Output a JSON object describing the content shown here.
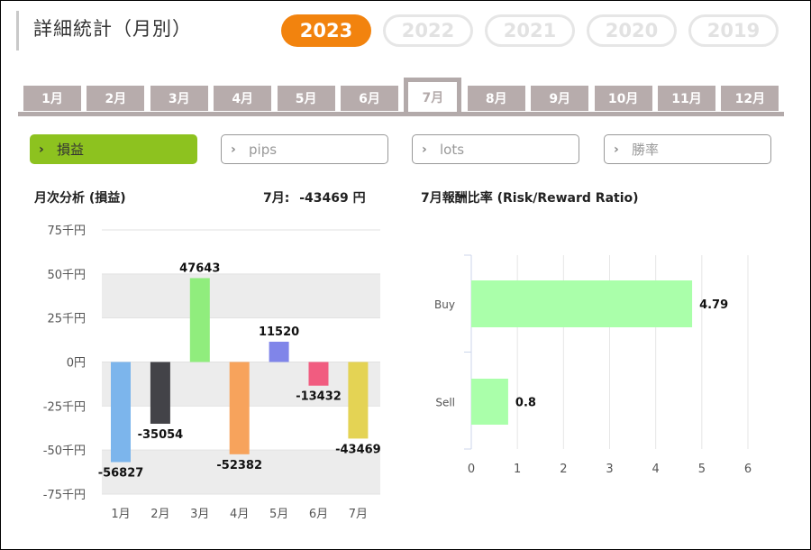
{
  "page": {
    "title": "詳細統計（月別）"
  },
  "years": [
    "2023",
    "2022",
    "2021",
    "2020",
    "2019"
  ],
  "selected_year": "2023",
  "months": [
    "1月",
    "2月",
    "3月",
    "4月",
    "5月",
    "6月",
    "7月",
    "8月",
    "9月",
    "10月",
    "11月",
    "12月"
  ],
  "selected_month": "7月",
  "metrics": [
    {
      "label": "損益",
      "active": true
    },
    {
      "label": "pips",
      "active": false
    },
    {
      "label": "lots",
      "active": false
    },
    {
      "label": "勝率",
      "active": false
    }
  ],
  "monthly": {
    "title": "月次分析 (損益)",
    "summary_label": "7月:",
    "summary_value": "-43469 円"
  },
  "rr": {
    "title": "7月報酬比率 (Risk/Reward Ratio)"
  },
  "colors": {
    "accent_year": "#f2830e",
    "accent_metric": "#8dc21f",
    "tab": "#b7acac"
  },
  "chart_data": [
    {
      "type": "bar",
      "categories": [
        "1月",
        "2月",
        "3月",
        "4月",
        "5月",
        "6月",
        "7月"
      ],
      "values": [
        -56827,
        -35054,
        47643,
        -52382,
        11520,
        -13432,
        -43469
      ],
      "value_labels": [
        "-56827",
        "-35054",
        "47643",
        "-52382",
        "11520",
        "-13432",
        "-43469"
      ],
      "colors": [
        "#7cb5ec",
        "#434348",
        "#90ed7d",
        "#f7a35c",
        "#8085e9",
        "#f15c80",
        "#e4d354"
      ],
      "yticks": [
        "75千円",
        "50千円",
        "25千円",
        "0円",
        "-25千円",
        "-50千円",
        "-75千円"
      ],
      "ytick_values": [
        75000,
        50000,
        25000,
        0,
        -25000,
        -50000,
        -75000
      ],
      "ylim": [
        -75000,
        75000
      ]
    },
    {
      "type": "bar",
      "orientation": "horizontal",
      "categories": [
        "Buy",
        "Sell"
      ],
      "values": [
        4.79,
        0.8
      ],
      "value_labels": [
        "4.79",
        "0.8"
      ],
      "color": "#aaffaa",
      "xticks": [
        "0",
        "1",
        "2",
        "3",
        "4",
        "5",
        "6"
      ],
      "xlim": [
        0,
        6
      ]
    }
  ]
}
